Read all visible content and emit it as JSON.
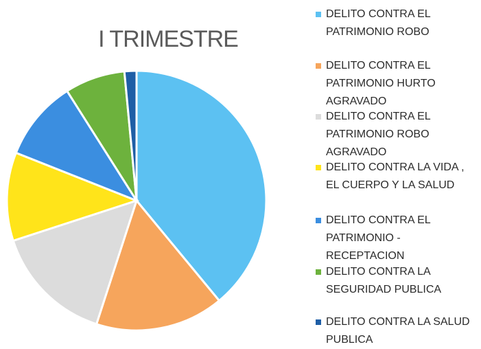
{
  "chart_data": {
    "type": "pie",
    "title": "I TRIMESTRE",
    "categories": [
      "DELITO CONTRA EL PATRIMONIO ROBO",
      "DELITO CONTRA EL PATRIMONIO HURTO AGRAVADO",
      "DELITO CONTRA EL PATRIMONIO ROBO AGRAVADO",
      "DELITO CONTRA LA VIDA , EL CUERPO Y LA SALUD",
      "DELITO CONTRA EL PATRIMONIO - RECEPTACION",
      "DELITO CONTRA LA SEGURIDAD PUBLICA",
      "DELITO CONTRA LA SALUD PUBLICA"
    ],
    "values": [
      39,
      16,
      15,
      11,
      10,
      7.5,
      1.5
    ],
    "colors": [
      "#5cc1f2",
      "#f6a55c",
      "#dcdcdc",
      "#ffe41a",
      "#3b8ee0",
      "#6db23d",
      "#1e5ea6"
    ]
  }
}
